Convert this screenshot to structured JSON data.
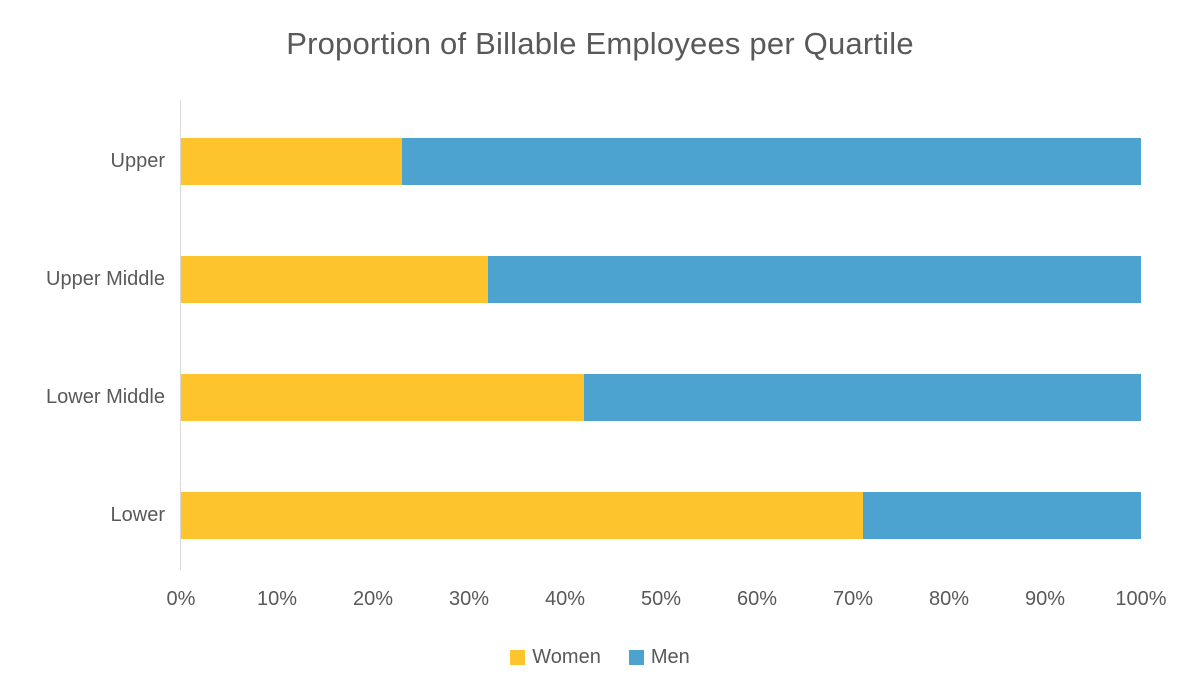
{
  "title": "Proportion of Billable Employees per Quartile",
  "chart_data": {
    "type": "bar",
    "orientation": "horizontal",
    "stacked": true,
    "title": "Proportion of Billable Employees per Quartile",
    "categories": [
      "Upper",
      "Upper Middle",
      "Lower Middle",
      "Lower"
    ],
    "series": [
      {
        "name": "Women",
        "color": "#FDC42D",
        "values": [
          23,
          32,
          42,
          71
        ]
      },
      {
        "name": "Men",
        "color": "#4DA3CF",
        "values": [
          77,
          68,
          58,
          29
        ]
      }
    ],
    "xlabel": "",
    "ylabel": "",
    "xlim": [
      0,
      100
    ],
    "x_tick_values": [
      0,
      10,
      20,
      30,
      40,
      50,
      60,
      70,
      80,
      90,
      100
    ],
    "x_tick_labels": [
      "0%",
      "10%",
      "20%",
      "30%",
      "40%",
      "50%",
      "60%",
      "70%",
      "80%",
      "90%",
      "100%"
    ],
    "grid": false,
    "legend_position": "bottom"
  },
  "colors": {
    "background": "#FFFFFF",
    "title_text": "#595959",
    "axis_text": "#595959",
    "axis_line": "#D9D9D9"
  }
}
